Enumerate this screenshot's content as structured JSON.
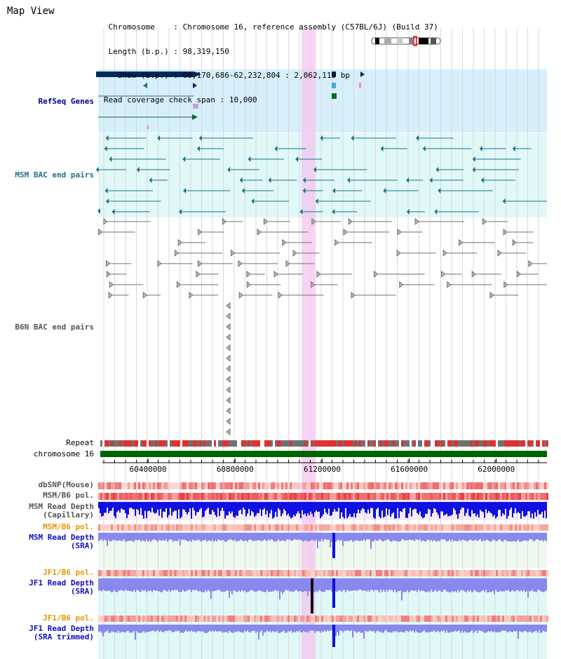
{
  "page": {
    "title": "Map View",
    "info": {
      "chromosome_label": "Chromosome",
      "chromosome_value": "Chromosome 16, reference assembly (C57BL/6J) (Build 37)",
      "length_label": "Length (b.p.)",
      "length_value": "98,319,150",
      "show_label": "Show (b.p.)",
      "show_value": "60,170,686-62,232,804 : 2,062,119 bp",
      "span_label": "Read coverage check span",
      "span_value": "10,000"
    }
  },
  "tracks": {
    "refseq": "RefSeq Genes",
    "msm_bac": "MSM BAC end pairs",
    "b6n_bac": "B6N BAC end pairs",
    "repeat": "Repeat",
    "chromosome": "chromosome 16",
    "dbsnp": "dbSNP(Mouse)",
    "msm_b6_pol": "MSM/B6 pol.",
    "msm_read_depth_cap_1": "MSM Read Depth",
    "msm_read_depth_cap_2": "(Capillary)",
    "msm_b6_pol_2": "MSM/B6 pol.",
    "msm_read_depth_sra_1": "MSM Read Depth",
    "msm_read_depth_sra_2": "(SRA)",
    "jf1_b6_pol": "JF1/B6 pol.",
    "jf1_read_depth_sra_1": "JF1 Read Depth",
    "jf1_read_depth_sra_2": "(SRA)",
    "jf1_b6_pol_2": "JF1/B6 pol.",
    "jf1_read_depth_trim_1": "JF1 Read Depth",
    "jf1_read_depth_trim_2": "(SRA trimmed)"
  },
  "axis": {
    "ticks": [
      "60400000",
      "60800000",
      "61200000",
      "61600000",
      "62000000"
    ],
    "tick_values": [
      60400000,
      60800000,
      61200000,
      61600000,
      62000000
    ],
    "range": [
      60170686,
      62232804
    ]
  },
  "highlight": {
    "start": 61105000,
    "end": 61170000
  },
  "colors": {
    "refseq_bg": "#d6effb",
    "msm_bg": "#e0f8f8",
    "msm_depth_bg": "#eef8ee",
    "jf1_depth_bg": "#e0f8f8",
    "highlight": "#f4c6ef",
    "chromosome": "#006400",
    "refseq_gene": "#002a5c",
    "msm_bac": "#1f6f8b",
    "b6n_bac": "#707070",
    "depth_capillary": "#1010e0",
    "depth_sra": "#8888ee"
  }
}
